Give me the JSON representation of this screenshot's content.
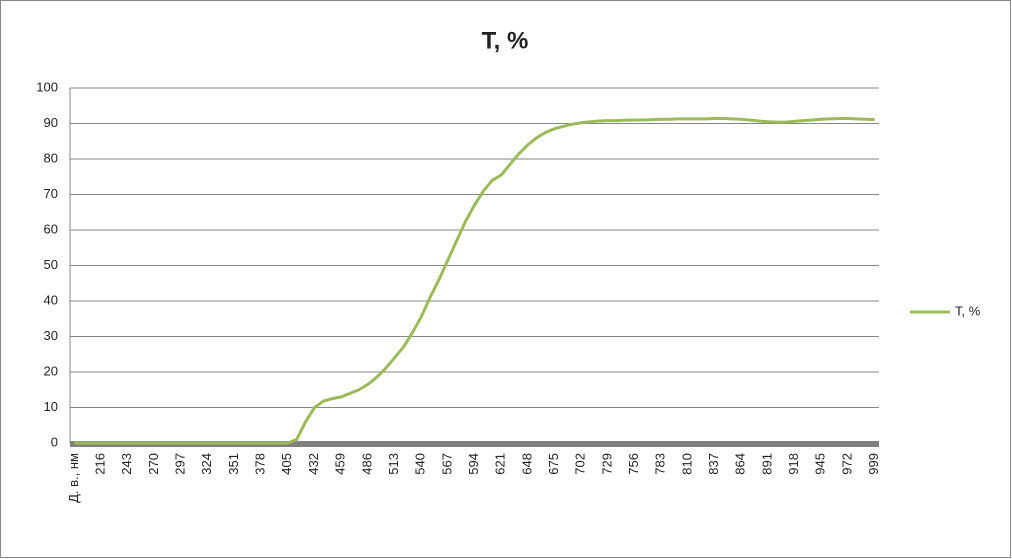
{
  "chart_data": {
    "type": "line",
    "title": "T, %",
    "categories": [
      "Д. в., нм",
      null,
      null,
      "216",
      null,
      null,
      "243",
      null,
      null,
      "270",
      null,
      null,
      "297",
      null,
      null,
      "324",
      null,
      null,
      "351",
      null,
      null,
      "378",
      null,
      null,
      "405",
      null,
      null,
      "432",
      null,
      null,
      "459",
      null,
      null,
      "486",
      null,
      null,
      "513",
      null,
      null,
      "540",
      null,
      null,
      "567",
      null,
      null,
      "594",
      null,
      null,
      "621",
      null,
      null,
      "648",
      null,
      null,
      "675",
      null,
      null,
      "702",
      null,
      null,
      "729",
      null,
      null,
      "756",
      null,
      null,
      "783",
      null,
      null,
      "810",
      null,
      null,
      "837",
      null,
      null,
      "864",
      null,
      null,
      "891",
      null,
      null,
      "918",
      null,
      null,
      "945",
      null,
      null,
      "972",
      null,
      null,
      "999"
    ],
    "series": [
      {
        "name": "T, %",
        "color": "#9bbb59",
        "values": [
          0,
          0,
          0,
          0,
          0,
          0,
          0,
          0,
          0,
          0,
          0,
          0,
          0,
          0,
          0,
          0,
          0,
          0,
          0,
          0,
          0,
          0,
          0,
          0,
          0,
          1,
          6,
          10,
          11.8,
          12.5,
          13,
          14,
          15,
          16.5,
          18.5,
          21,
          24,
          27,
          31,
          35.5,
          41,
          46,
          51.5,
          57,
          62.5,
          67,
          71,
          74,
          75.5,
          78.5,
          81.5,
          84,
          86,
          87.5,
          88.5,
          89.2,
          89.8,
          90.2,
          90.5,
          90.7,
          90.8,
          90.8,
          90.9,
          91,
          91,
          91.1,
          91.2,
          91.2,
          91.3,
          91.3,
          91.3,
          91.3,
          91.4,
          91.4,
          91.3,
          91.2,
          91,
          90.7,
          90.5,
          90.4,
          90.4,
          90.6,
          90.8,
          91,
          91.2,
          91.3,
          91.4,
          91.4,
          91.3,
          91.2,
          91.1
        ]
      }
    ],
    "ylim": [
      0,
      100
    ],
    "yticks": [
      0,
      10,
      20,
      30,
      40,
      50,
      60,
      70,
      80,
      90,
      100
    ],
    "grid": true,
    "legend": "right"
  }
}
